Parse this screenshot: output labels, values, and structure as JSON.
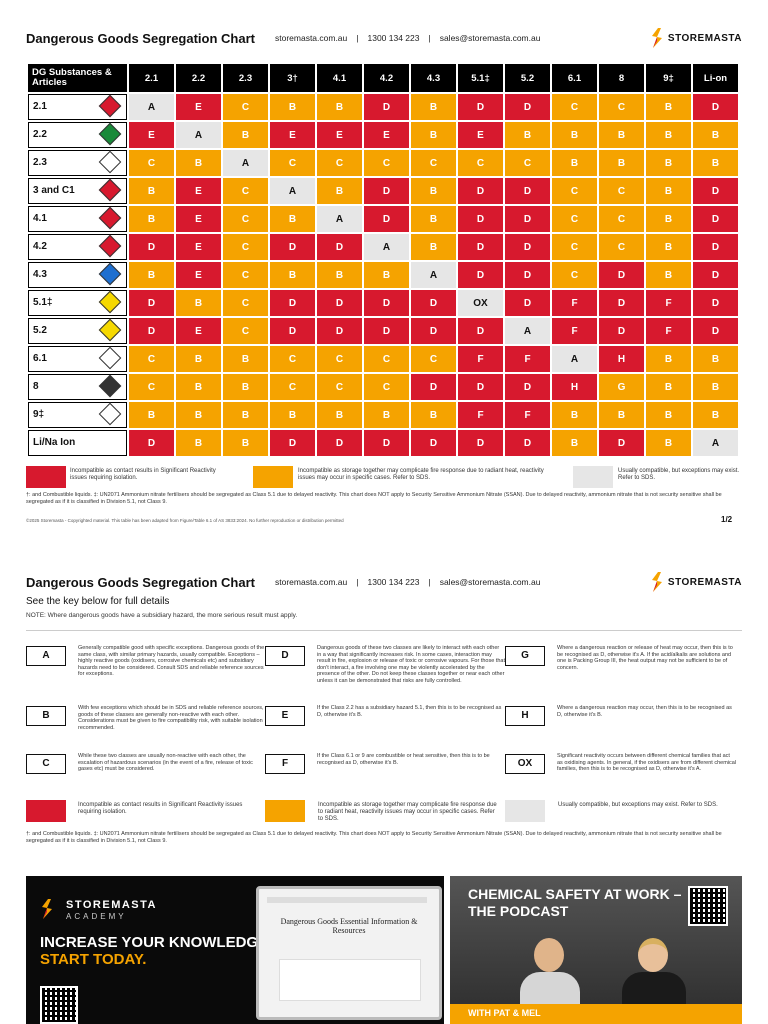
{
  "header": {
    "title": "Dangerous Goods Segregation Chart",
    "website": "storemasta.com.au",
    "phone": "1300 134 223",
    "email": "sales@storemasta.com.au",
    "brand": "STOREMASTA"
  },
  "chart": {
    "corner_label": "DG Substances & Articles",
    "columns": [
      "2.1",
      "2.2",
      "2.3",
      "3†",
      "4.1",
      "4.2",
      "4.3",
      "5.1‡",
      "5.2",
      "6.1",
      "8",
      "9‡",
      "Li-on"
    ],
    "rows": [
      {
        "label": "2.1",
        "icon_color": "#d7192e",
        "cells": [
          "A",
          "E",
          "C",
          "B",
          "B",
          "D",
          "B",
          "D",
          "D",
          "C",
          "C",
          "B",
          "D"
        ]
      },
      {
        "label": "2.2",
        "icon_color": "#1a8a3a",
        "cells": [
          "E",
          "A",
          "B",
          "E",
          "E",
          "E",
          "B",
          "E",
          "B",
          "B",
          "B",
          "B",
          "B"
        ]
      },
      {
        "label": "2.3",
        "icon_color": "#ffffff",
        "cells": [
          "C",
          "B",
          "A",
          "C",
          "C",
          "C",
          "C",
          "C",
          "C",
          "B",
          "B",
          "B",
          "B"
        ]
      },
      {
        "label": "3 and C1",
        "icon_color": "#d7192e",
        "cells": [
          "B",
          "E",
          "C",
          "A",
          "B",
          "D",
          "B",
          "D",
          "D",
          "C",
          "C",
          "B",
          "D"
        ]
      },
      {
        "label": "4.1",
        "icon_color": "#d7192e",
        "cells": [
          "B",
          "E",
          "C",
          "B",
          "A",
          "D",
          "B",
          "D",
          "D",
          "C",
          "C",
          "B",
          "D"
        ]
      },
      {
        "label": "4.2",
        "icon_color": "#d7192e",
        "cells": [
          "D",
          "E",
          "C",
          "D",
          "D",
          "A",
          "B",
          "D",
          "D",
          "C",
          "C",
          "B",
          "D"
        ]
      },
      {
        "label": "4.3",
        "icon_color": "#1e6fd0",
        "cells": [
          "B",
          "E",
          "C",
          "B",
          "B",
          "B",
          "A",
          "D",
          "D",
          "C",
          "D",
          "B",
          "D"
        ]
      },
      {
        "label": "5.1‡",
        "icon_color": "#f5d800",
        "cells": [
          "D",
          "B",
          "C",
          "D",
          "D",
          "D",
          "D",
          "OX",
          "D",
          "F",
          "D",
          "F",
          "D"
        ]
      },
      {
        "label": "5.2",
        "icon_color": "#f5d800",
        "cells": [
          "D",
          "E",
          "C",
          "D",
          "D",
          "D",
          "D",
          "D",
          "A",
          "F",
          "D",
          "F",
          "D"
        ]
      },
      {
        "label": "6.1",
        "icon_color": "#ffffff",
        "cells": [
          "C",
          "B",
          "B",
          "C",
          "C",
          "C",
          "C",
          "F",
          "F",
          "A",
          "H",
          "B",
          "B"
        ]
      },
      {
        "label": "8",
        "icon_color": "#333333",
        "cells": [
          "C",
          "B",
          "B",
          "C",
          "C",
          "C",
          "D",
          "D",
          "D",
          "H",
          "G",
          "B",
          "B"
        ]
      },
      {
        "label": "9‡",
        "icon_color": "#ffffff",
        "cells": [
          "B",
          "B",
          "B",
          "B",
          "B",
          "B",
          "B",
          "F",
          "F",
          "B",
          "B",
          "B",
          "B"
        ]
      },
      {
        "label": "Li/Na Ion",
        "icon_color": "",
        "cells": [
          "D",
          "B",
          "B",
          "D",
          "D",
          "D",
          "D",
          "D",
          "D",
          "B",
          "D",
          "B",
          "A"
        ]
      }
    ]
  },
  "legend": {
    "red": "Incompatible as contact results in Significant Reactivity issues requiring isolation.",
    "orange": "Incompatible as storage together may complicate fire response due to radiant heat, reactivity issues may occur in specific cases. Refer to SDS.",
    "grey": "Usually compatible, but exceptions may exist. Refer to SDS.",
    "colors": {
      "red": "#d7192e",
      "orange": "#f5a300",
      "grey": "#e6e6e6"
    }
  },
  "footnote": "†: and Combustible liquids. ‡: UN2071 Ammonium nitrate fertilisers should be segregated as Class 5.1 due to delayed reactivity. This chart does NOT apply to Security Sensitive Ammonium Nitrate (SSAN). Due to delayed reactivity, ammonium nitrate that is not security sensitive shall be segregated as if it is classified in Division 5.1, not Class 9.",
  "copyright": "©2025 Storemasta - Copyrighted material. This table has been adapted from Figure/Table 6.1 of AS 3833:2024. No further reproduction or distribution permitted",
  "page": "1/2",
  "page2": {
    "subtitle": "See the key below for full details",
    "note": "NOTE: Where dangerous goods have a subsidiary hazard, the more serious result must apply.",
    "keys": [
      {
        "code": "A",
        "text": "Generally compatible good with specific exceptions. Dangerous goods of the same class, with similar primary hazards, usually compatible. Exceptions – highly reactive goods (oxidisers, corrosive chemicals etc) and subsidiary hazards need to be considered. Consult SDS and reliable reference sources for exceptions."
      },
      {
        "code": "D",
        "text": "Dangerous goods of these two classes are likely to interact with each other in a way that significantly increases risk. In some cases, interaction may result in fire, explosion or release of toxic or corrosive vapours. For those that don't interact, a fire involving one may be violently accelerated by the presence of the other. Do not keep these classes together or near each other unless it can be demonstrated that risks are fully controlled."
      },
      {
        "code": "G",
        "text": "Where a dangerous reaction or release of heat may occur, then this is to be recognised as D, otherwise it's A. If the acid/alkalis are solutions and one is Packing Group III, the heat output may not be sufficient to be of concern."
      },
      {
        "code": "B",
        "text": "With few exceptions which should be in SDS and reliable reference sources, goods of these classes are generally non-reactive with each other. Considerations must be given to fire compatibility risk, with suitable isolation recommended."
      },
      {
        "code": "E",
        "text": "If the Class 2.2 has a subsidiary hazard 5.1, then this is to be recognised as D, otherwise it's B."
      },
      {
        "code": "H",
        "text": "Where a dangerous reaction may occur, then this is to be recognised as D, otherwise it's B."
      },
      {
        "code": "C",
        "text": "While these two classes are usually non-reactive with each other, the escalation of hazardous scenarios (in the event of a fire, release of toxic gases etc) must be considered."
      },
      {
        "code": "F",
        "text": "If the Class 6.1 or 9 are combustible or heat sensitive, then this is to be recognised as D, otherwise it's B."
      },
      {
        "code": "OX",
        "text": "Significant reactivity occurs between different chemical families that act as oxidising agents. In general, if the oxidisers are from different chemical families, then this is to be recognised as D, otherwise it's A."
      }
    ],
    "legend_red": "Incompatible as contact results in Significant Reactivity issues requiring isolation.",
    "legend_orange": "Incompatible as storage together may complicate fire response due to radiant heat, reactivity issues may occur in specific cases. Refer to SDS.",
    "legend_grey": "Usually compatible, but exceptions may exist. Refer to SDS."
  },
  "ad_academy": {
    "brand": "STOREMASTA",
    "sub": "ACADEMY",
    "headline1": "INCREASE YOUR KNOWLEDGE,",
    "headline2": "START TODAY.",
    "screen_title": "Dangerous Goods Essential Information & Resources",
    "accent": "#f5a300"
  },
  "ad_podcast": {
    "headline": "CHEMICAL SAFETY AT WORK – THE PODCAST",
    "footer": "WITH PAT & MEL"
  }
}
